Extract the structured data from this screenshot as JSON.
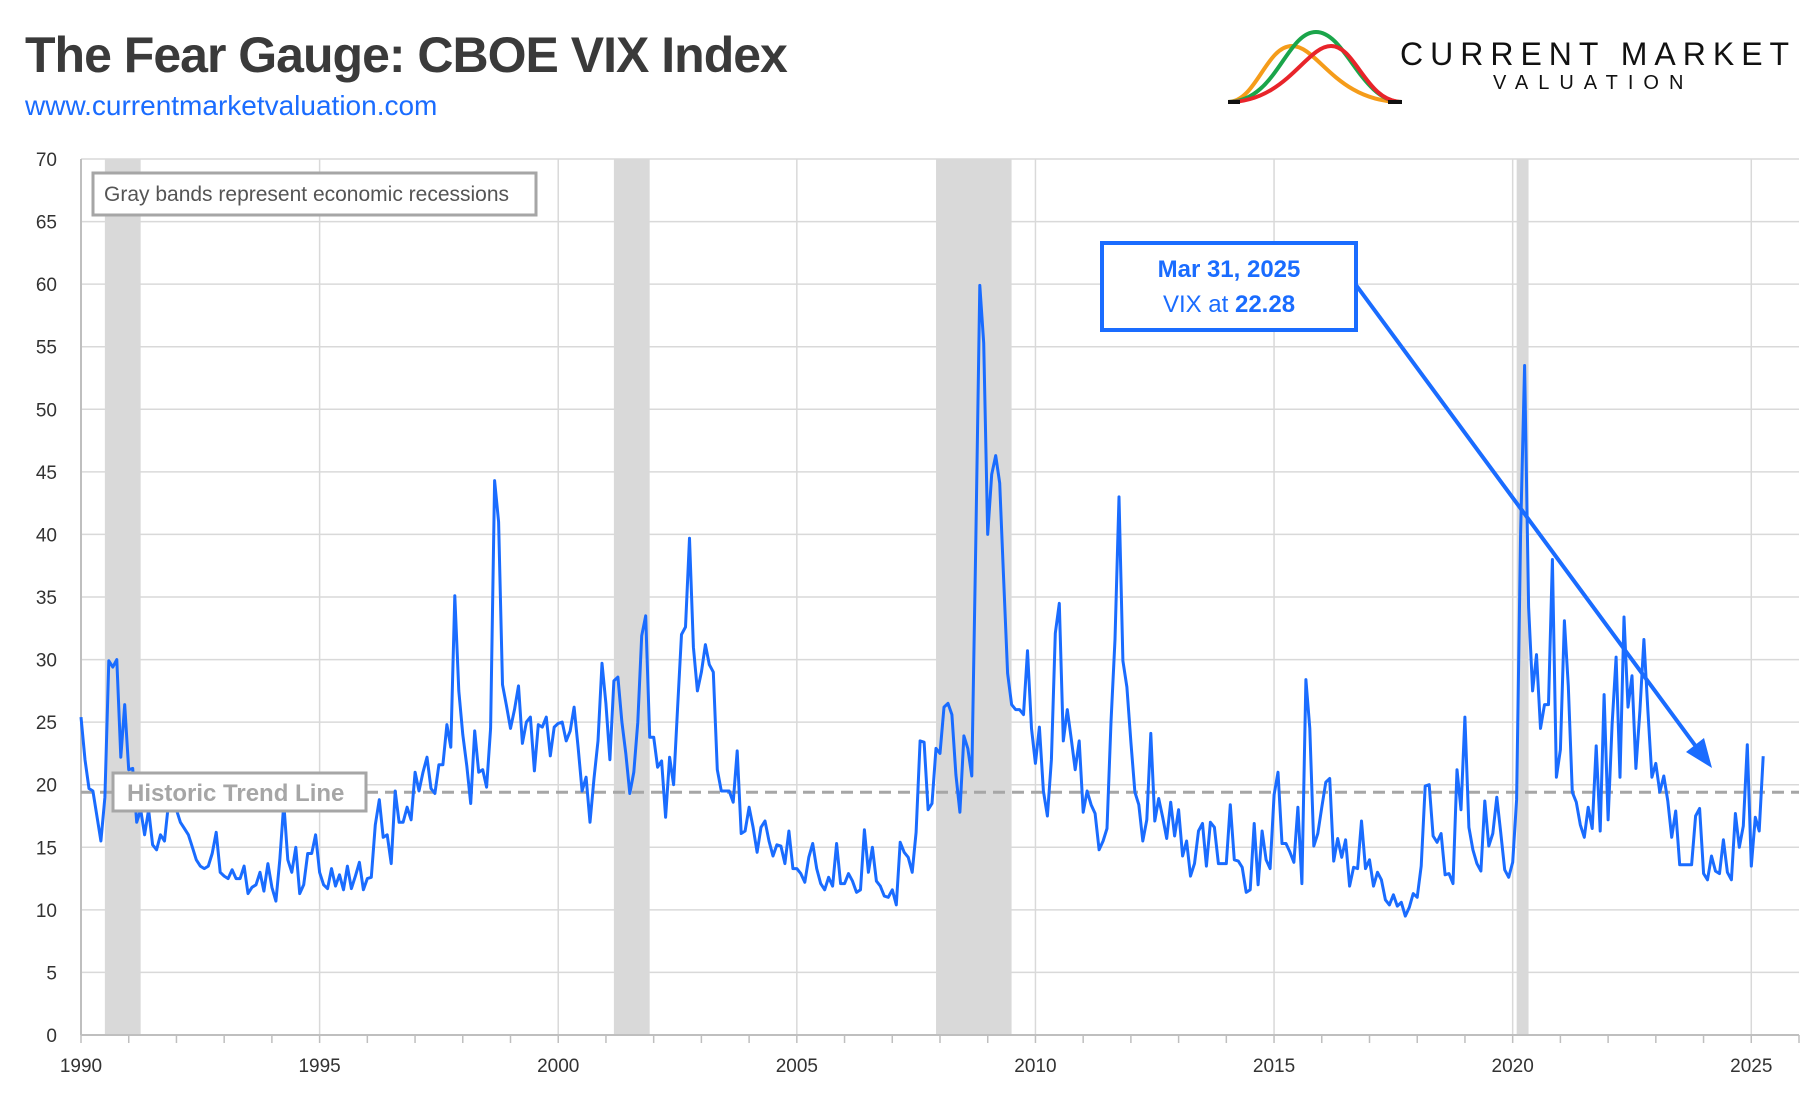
{
  "header": {
    "title": "The Fear Gauge: CBOE VIX Index",
    "url": "www.currentmarketvaluation.com",
    "logo_line1": "CURRENT MARKET",
    "logo_line2": "VALUATION"
  },
  "colors": {
    "series": "#1a6cff",
    "recession": "#d9d9d9",
    "trend": "#a6a6a6",
    "annotation": "#1a6cff"
  },
  "chart_data": {
    "type": "line",
    "title": "The Fear Gauge: CBOE VIX Index",
    "xlabel": "",
    "ylabel": "",
    "xlim": [
      1990,
      2026
    ],
    "ylim": [
      0,
      70
    ],
    "x_ticks": [
      "1990",
      "1995",
      "2000",
      "2005",
      "2010",
      "2015",
      "2020",
      "2025"
    ],
    "y_ticks": [
      "0",
      "5",
      "10",
      "15",
      "20",
      "25",
      "30",
      "35",
      "40",
      "45",
      "50",
      "55",
      "60",
      "65",
      "70"
    ],
    "grid": true,
    "x_start": "1990-01",
    "frequency": "monthly",
    "values": [
      25.4,
      22,
      19.7,
      19.5,
      17.5,
      15.5,
      19,
      29.9,
      29.4,
      30,
      22.2,
      26.4,
      21.2,
      21.3,
      17,
      18,
      16,
      18,
      15.2,
      14.8,
      16,
      15.5,
      18.5,
      19.5,
      18,
      17,
      16.5,
      16,
      15,
      14,
      13.5,
      13.3,
      13.5,
      14.5,
      16.2,
      13,
      12.7,
      12.5,
      13.2,
      12.5,
      12.5,
      13.5,
      11.3,
      11.8,
      12,
      13,
      11.5,
      13.7,
      11.8,
      10.7,
      14,
      18.5,
      14,
      13,
      15,
      11.3,
      12,
      14.5,
      14.5,
      16,
      13,
      12,
      11.7,
      13.3,
      11.9,
      12.8,
      11.6,
      13.5,
      11.7,
      12.7,
      13.8,
      11.6,
      12.5,
      12.6,
      16.8,
      18.8,
      15.8,
      16,
      13.7,
      19.5,
      17,
      17,
      18.2,
      17.2,
      21,
      19.5,
      21,
      22.2,
      19.7,
      19.3,
      21.6,
      21.6,
      24.8,
      23,
      35.1,
      27.5,
      24,
      21.5,
      18.5,
      24.3,
      21,
      21.2,
      19.8,
      24.5,
      44.3,
      41,
      28,
      26.3,
      24.5,
      26,
      27.9,
      23.3,
      25,
      25.4,
      21.1,
      24.8,
      24.6,
      25.4,
      22.3,
      24.6,
      24.9,
      25,
      23.5,
      24.3,
      26.2,
      23,
      19.5,
      20.6,
      17,
      20.5,
      23.5,
      29.7,
      26.5,
      22,
      28.3,
      28.6,
      25,
      22.5,
      19.3,
      21,
      25,
      31.9,
      33.5,
      23.8,
      23.8,
      21.4,
      21.9,
      17.4,
      22.2,
      20,
      26,
      32,
      32.6,
      39.7,
      31,
      27.5,
      29,
      31.2,
      29.6,
      29,
      21.2,
      19.5,
      19.5,
      19.5,
      18.6,
      22.7,
      16.1,
      16.3,
      18.2,
      16.6,
      14.6,
      16.6,
      17.1,
      15.5,
      14.3,
      15.2,
      15.1,
      13.7,
      16.3,
      13.3,
      13.3,
      12.9,
      12.2,
      14.2,
      15.3,
      13.3,
      12.1,
      11.6,
      12.6,
      11.9,
      15.3,
      12.1,
      12.1,
      12.9,
      12.3,
      11.4,
      11.6,
      16.4,
      13,
      15,
      12.3,
      11.9,
      11.1,
      11,
      11.6,
      10.4,
      15.4,
      14.6,
      14.2,
      13,
      16.2,
      23.5,
      23.4,
      18,
      18.5,
      22.9,
      22.5,
      26.2,
      26.5,
      25.6,
      20.8,
      17.8,
      23.9,
      22.9,
      20.7,
      39.4,
      59.9,
      55.3,
      40,
      44.8,
      46.3,
      44.1,
      36.5,
      28.9,
      26.4,
      26,
      26,
      25.6,
      30.7,
      24.5,
      21.7,
      24.6,
      19.5,
      17.5,
      22,
      32.1,
      34.5,
      23.5,
      26,
      23.7,
      21.2,
      23.5,
      17.8,
      19.5,
      18.4,
      17.7,
      14.8,
      15.5,
      16.5,
      25,
      31.6,
      43,
      29.9,
      27.8,
      23.4,
      19.4,
      18.4,
      15.5,
      17.2,
      24.1,
      17.1,
      18.9,
      17.4,
      15.7,
      18.6,
      15.9,
      18,
      14.3,
      15.5,
      12.7,
      13.7,
      16.3,
      16.9,
      13.5,
      17,
      16.6,
      13.7,
      13.7,
      13.7,
      18.4,
      14,
      13.9,
      13.4,
      11.4,
      11.6,
      16.9,
      12,
      16.3,
      14,
      13.3,
      19.2,
      21,
      15.3,
      15.3,
      14.6,
      13.8,
      18.2,
      12.1,
      28.4,
      24.5,
      15.1,
      16.1,
      18.2,
      20.2,
      20.5,
      13.9,
      15.7,
      14.2,
      15.6,
      11.9,
      13.4,
      13.3,
      17.1,
      13.3,
      14,
      11.9,
      13,
      12.4,
      10.8,
      10.4,
      11.2,
      10.3,
      10.6,
      9.5,
      10.2,
      11.3,
      11,
      13.5,
      19.9,
      20,
      15.9,
      15.4,
      16.1,
      12.8,
      12.9,
      12.1,
      21.2,
      18,
      25.4,
      16.6,
      14.8,
      13.7,
      13.1,
      18.7,
      15.1,
      16.1,
      19,
      16.2,
      13.2,
      12.6,
      13.8,
      18.8,
      40.1,
      53.5,
      34.2,
      27.5,
      30.4,
      24.5,
      26.4,
      26.4,
      38,
      20.6,
      22.8,
      33.1,
      27.9,
      19.4,
      18.6,
      16.8,
      15.8,
      18.2,
      16.5,
      23.1,
      16.3,
      27.2,
      17.2,
      24.8,
      30.2,
      20.6,
      33.4,
      26.2,
      28.7,
      21.3,
      25.9,
      31.6,
      25.9,
      20.6,
      21.7,
      19.4,
      20.7,
      18.7,
      15.8,
      17.9,
      13.6,
      13.6,
      13.6,
      13.6,
      17.5,
      18.1,
      12.9,
      12.4,
      14.3,
      13.1,
      12.9,
      15.6,
      13,
      12.4,
      17.7,
      15,
      16.7,
      23.2,
      13.5,
      17.4,
      16.3,
      22.28
    ],
    "recessions": [
      [
        "1990-07",
        "1991-03"
      ],
      [
        "2001-03",
        "2001-11"
      ],
      [
        "2007-12",
        "2009-06"
      ],
      [
        "2020-02",
        "2020-04"
      ]
    ],
    "trend_line": {
      "label": "Historic Trend Line",
      "value": 19.4
    },
    "legend_note": "Gray bands represent economic recessions",
    "annotation": {
      "line1": "Mar 31, 2025",
      "line2_prefix": "VIX at ",
      "line2_value": "22.28",
      "points_to": "2025-03"
    }
  }
}
